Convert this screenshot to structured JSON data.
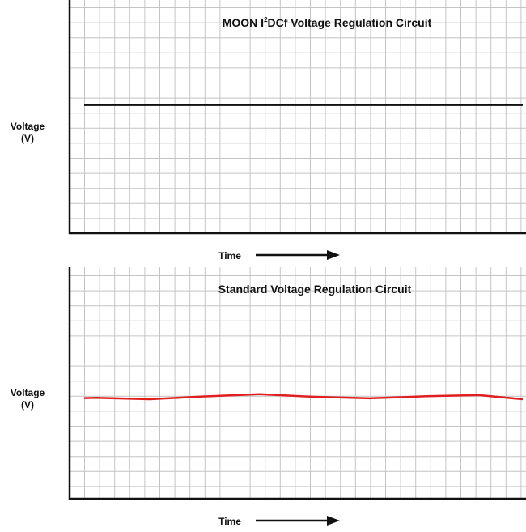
{
  "chart_data": [
    {
      "type": "line",
      "title_prefix": "MOON  I",
      "title_sup": "2",
      "title_suffix": "DCf Voltage Regulation Circuit",
      "ylabel_line1": "Voltage",
      "ylabel_line2": "(V)",
      "xlabel": "Time",
      "grid": true,
      "xlim": [
        0,
        100
      ],
      "ylim": [
        0,
        100
      ],
      "series": [
        {
          "color": "#111111",
          "x": [
            0,
            100
          ],
          "y": [
            55,
            55
          ]
        }
      ]
    },
    {
      "type": "line",
      "title": "Standard Voltage Regulation Circuit",
      "ylabel_line1": "Voltage",
      "ylabel_line2": "(V)",
      "xlabel": "Time",
      "grid": true,
      "xlim": [
        0,
        100
      ],
      "ylim": [
        0,
        100
      ],
      "series": [
        {
          "color": "#e02020",
          "x": [
            0,
            3,
            15,
            27,
            40,
            52,
            65,
            78,
            90,
            100
          ],
          "y": [
            43.5,
            43.6,
            43.0,
            44.2,
            45.2,
            44.1,
            43.4,
            44.3,
            44.8,
            43.0
          ]
        }
      ]
    }
  ]
}
